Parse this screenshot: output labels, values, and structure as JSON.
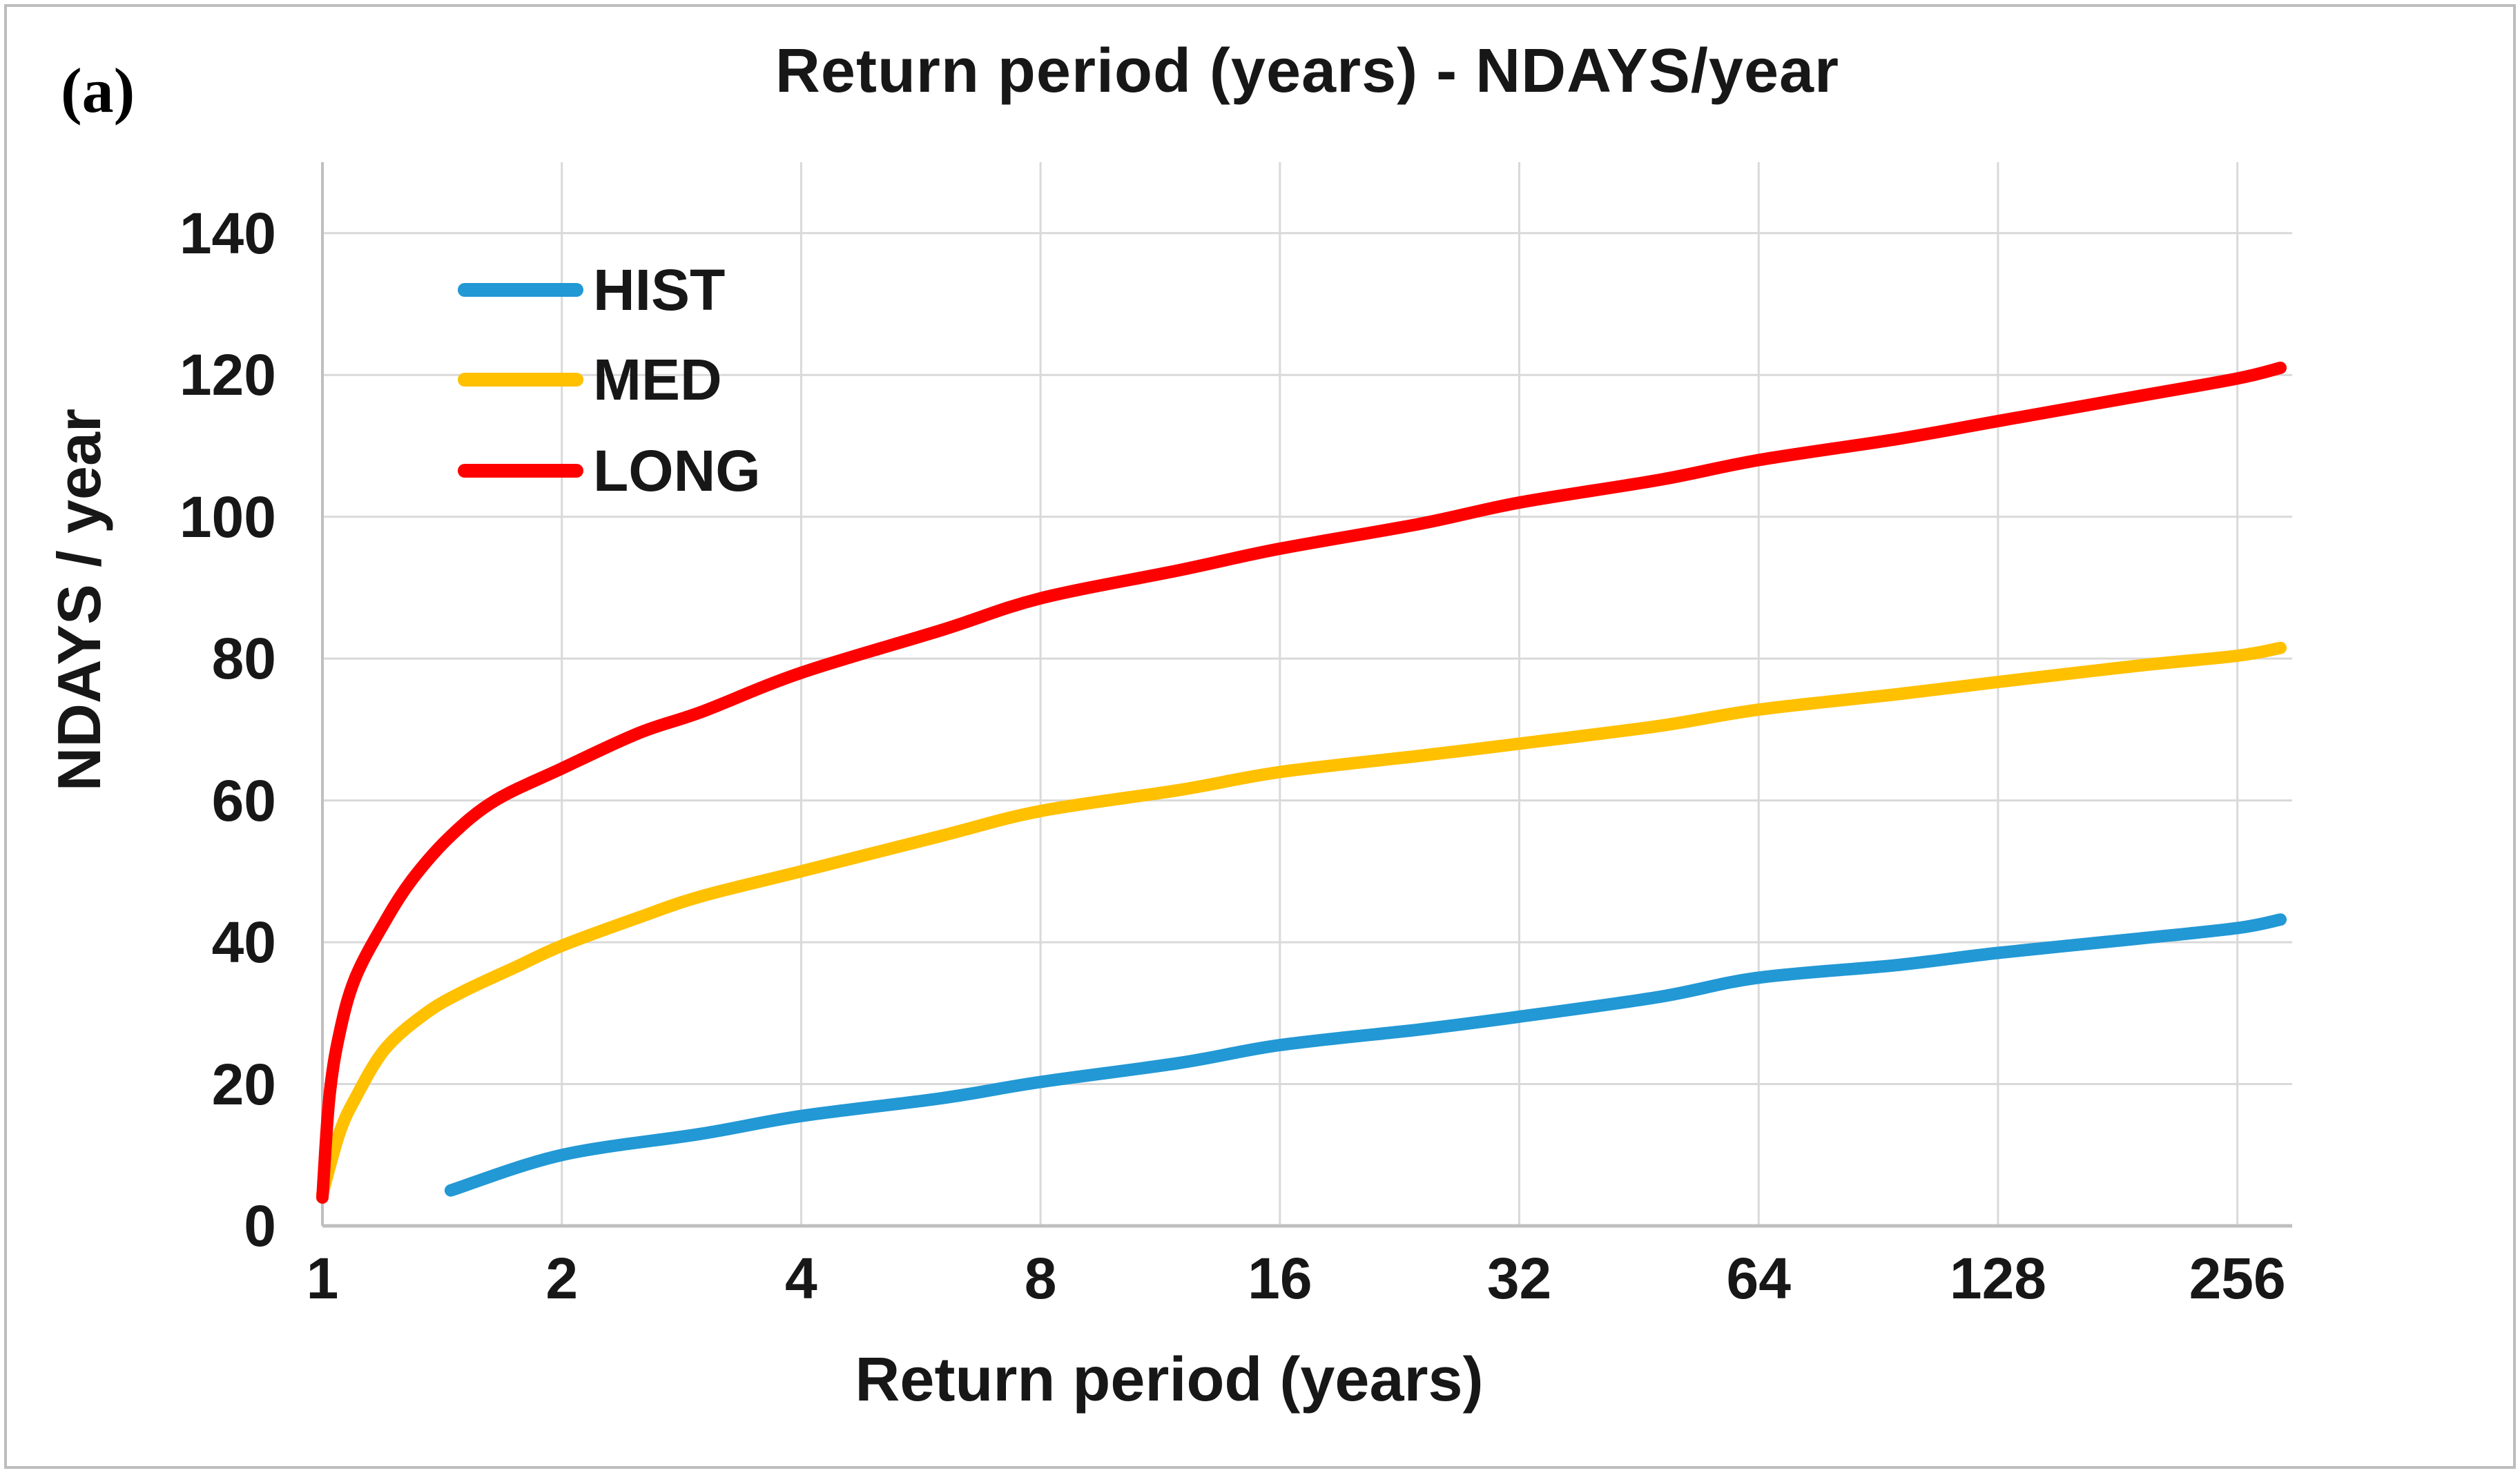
{
  "figure_label": "(a)",
  "title": "Return period (years) - NDAYS/year",
  "legend_items": [
    "HIST",
    "MED",
    "LONG"
  ],
  "colors": {
    "hist": "#2298D5",
    "med": "#FFC000",
    "long": "#FF0000",
    "gridline": "#D9D9D9",
    "axis_line": "#BFBFBF",
    "text": "#171717"
  },
  "chart_data": {
    "type": "line",
    "title": "Return period (years) - NDAYS/year",
    "xlabel": "Return period (years)",
    "ylabel": "NDAYS / year",
    "x_scale": "log2",
    "x_range": [
      1,
      300
    ],
    "y_range": [
      0,
      150
    ],
    "x_ticks": [
      1,
      2,
      4,
      8,
      16,
      32,
      64,
      128,
      256
    ],
    "y_ticks": [
      0,
      20,
      40,
      60,
      80,
      100,
      120,
      140
    ],
    "grid": true,
    "legend_position": "inside-top-left",
    "series": [
      {
        "name": "HIST",
        "color": "#2298D5",
        "points": [
          [
            1.45,
            5
          ],
          [
            2,
            10
          ],
          [
            3,
            13
          ],
          [
            4,
            15.5
          ],
          [
            6,
            18
          ],
          [
            8,
            20.3
          ],
          [
            12,
            23
          ],
          [
            16,
            25.5
          ],
          [
            24,
            27.7
          ],
          [
            32,
            29.5
          ],
          [
            48,
            32.3
          ],
          [
            64,
            35
          ],
          [
            96,
            36.8
          ],
          [
            128,
            38.5
          ],
          [
            192,
            40.5
          ],
          [
            256,
            42
          ],
          [
            290,
            43.2
          ]
        ]
      },
      {
        "name": "MED",
        "color": "#FFC000",
        "points": [
          [
            1,
            4.5
          ],
          [
            1.05,
            13
          ],
          [
            1.1,
            18
          ],
          [
            1.2,
            25
          ],
          [
            1.35,
            30
          ],
          [
            1.5,
            33
          ],
          [
            1.75,
            36.5
          ],
          [
            2,
            39.5
          ],
          [
            2.5,
            43.5
          ],
          [
            3,
            46.5
          ],
          [
            4,
            50
          ],
          [
            6,
            55
          ],
          [
            8,
            58.5
          ],
          [
            12,
            61.5
          ],
          [
            16,
            64
          ],
          [
            24,
            66.3
          ],
          [
            32,
            68
          ],
          [
            48,
            70.5
          ],
          [
            64,
            72.8
          ],
          [
            96,
            75
          ],
          [
            128,
            76.7
          ],
          [
            192,
            79
          ],
          [
            256,
            80.4
          ],
          [
            290,
            81.5
          ]
        ]
      },
      {
        "name": "LONG",
        "color": "#FF0000",
        "points": [
          [
            1,
            4
          ],
          [
            1.02,
            18
          ],
          [
            1.05,
            27
          ],
          [
            1.1,
            35
          ],
          [
            1.2,
            43
          ],
          [
            1.3,
            49
          ],
          [
            1.45,
            55
          ],
          [
            1.65,
            60
          ],
          [
            2,
            64.5
          ],
          [
            2.5,
            69.5
          ],
          [
            3,
            72.5
          ],
          [
            4,
            78
          ],
          [
            6,
            84
          ],
          [
            8,
            88.5
          ],
          [
            12,
            92.5
          ],
          [
            16,
            95.5
          ],
          [
            24,
            99
          ],
          [
            32,
            102
          ],
          [
            48,
            105.2
          ],
          [
            64,
            108
          ],
          [
            96,
            111
          ],
          [
            128,
            113.5
          ],
          [
            192,
            117
          ],
          [
            256,
            119.5
          ],
          [
            290,
            121
          ]
        ]
      }
    ]
  }
}
